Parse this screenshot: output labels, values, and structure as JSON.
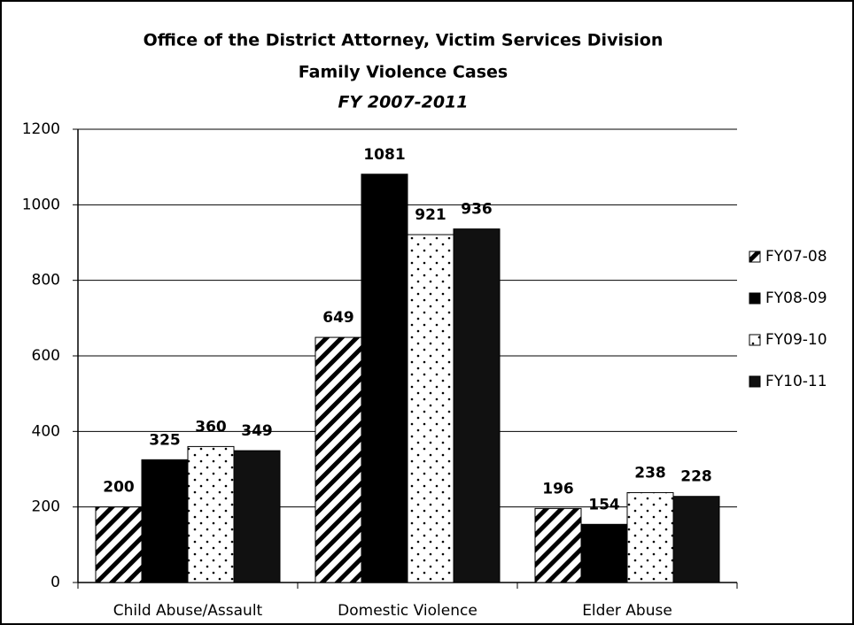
{
  "chart_data": {
    "type": "bar",
    "title": "Office of the District Attorney, Victim Services Division",
    "subtitle": "Family Violence Cases",
    "date_range": "FY 2007-2011",
    "categories": [
      "Child Abuse/Assault",
      "Domestic Violence",
      "Elder Abuse"
    ],
    "series": [
      {
        "name": "FY07-08",
        "color": "#000000",
        "pattern": "hatch",
        "values": [
          200,
          649,
          196
        ]
      },
      {
        "name": "FY08-09",
        "color": "#000000",
        "pattern": "solid",
        "values": [
          325,
          1081,
          154
        ]
      },
      {
        "name": "FY09-10",
        "color": "#000000",
        "pattern": "dots",
        "values": [
          360,
          921,
          238
        ]
      },
      {
        "name": "FY10-11",
        "color": "#111111",
        "pattern": "solid",
        "values": [
          349,
          936,
          228
        ]
      }
    ],
    "ylim": [
      0,
      1200
    ],
    "yticks": [
      0,
      200,
      400,
      600,
      800,
      1000,
      1200
    ],
    "grid": true,
    "legend": "right"
  }
}
